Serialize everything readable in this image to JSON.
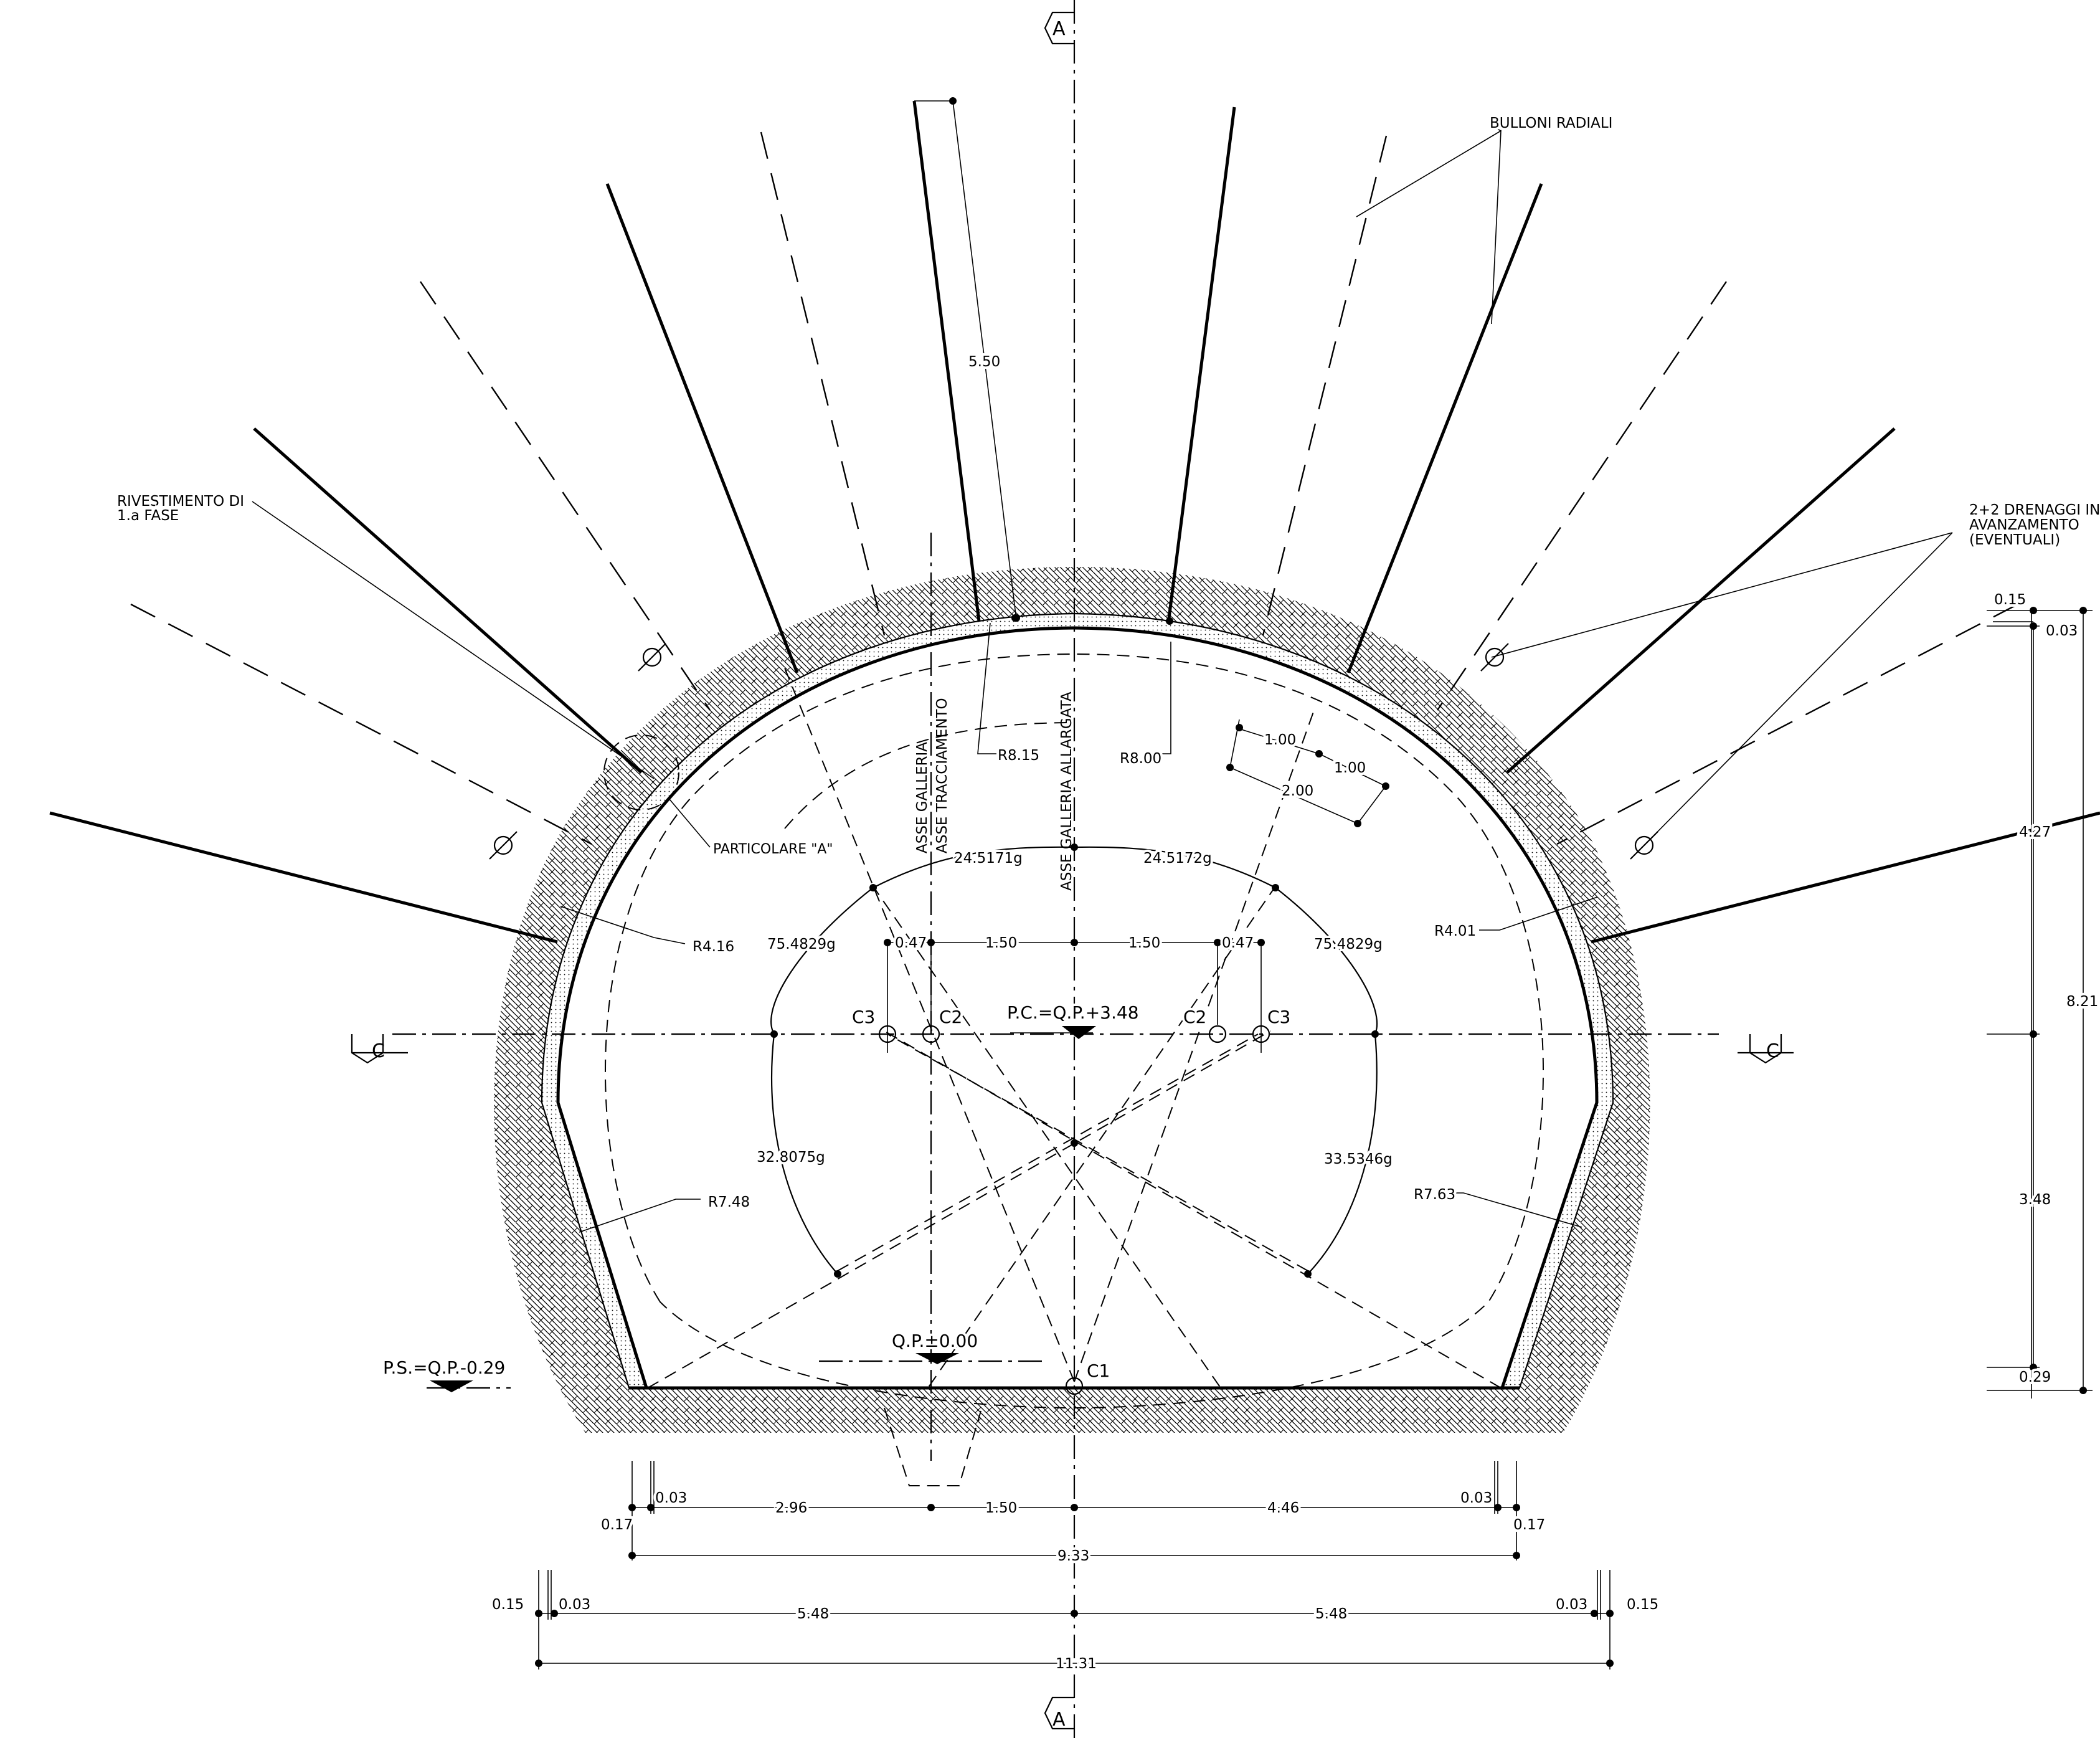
{
  "section_marks": {
    "top": "A",
    "bottom": "A",
    "left": "C",
    "right": "C"
  },
  "labels": {
    "bulloni": "BULLONI  RADIALI",
    "rivestimento_1": "RIVESTIMENTO  DI",
    "rivestimento_2": "1.a  FASE",
    "drenaggi_1": "2+2  DRENAGGI  IN",
    "drenaggi_2": "AVANZAMENTO",
    "drenaggi_3": "(EVENTUALI)",
    "particolare": "PARTICOLARE \"A\"",
    "asse_galleria_1": "ASSE  GALLERIA",
    "asse_galleria_2": "ASSE  TRACCIAMENTO",
    "asse_allargata": "ASSE  GALLERIA  ALLARGATA",
    "pc": "P.C.=Q.P.+3.48",
    "qp": "Q.P.±0.00",
    "ps": "P.S.=Q.P.-0.29"
  },
  "radii": {
    "r815": "R8.15",
    "r800": "R8.00",
    "r416": "R4.16",
    "r401": "R4.01",
    "r748": "R7.48",
    "r763": "R7.63"
  },
  "angles": {
    "a1": "24.5171g",
    "a2": "24.5172g",
    "a3": "75.4829g",
    "a4": "75.4829g",
    "a5": "32.8075g",
    "a6": "33.5346g"
  },
  "centers": {
    "c1": "C1",
    "c2l": "C2",
    "c2r": "C2",
    "c3l": "C3",
    "c3r": "C3"
  },
  "dimensions": {
    "bolt_len": "5.50",
    "spacing_1": "1.00",
    "spacing_2": "1.00",
    "spacing_3": "2.00",
    "off_l": "0.47",
    "off_r": "0.47",
    "half_l": "1.50",
    "half_r": "1.50",
    "right_015": "0.15",
    "right_003": "0.03",
    "right_427": "4.27",
    "right_821": "8.21",
    "right_348": "3.48",
    "right_029": "0.29",
    "b1_003l": "0.03",
    "b1_017l": "0.17",
    "b1_296": "2.96",
    "b1_150": "1.50",
    "b1_446": "4.46",
    "b1_003r": "0.03",
    "b1_017r": "0.17",
    "b2_933": "9.33",
    "b3_015l": "0.15",
    "b3_003l": "0.03",
    "b3_548l": "5.48",
    "b3_548r": "5.48",
    "b3_003r": "0.03",
    "b3_015r": "0.15",
    "b4_1131": "11.31"
  }
}
